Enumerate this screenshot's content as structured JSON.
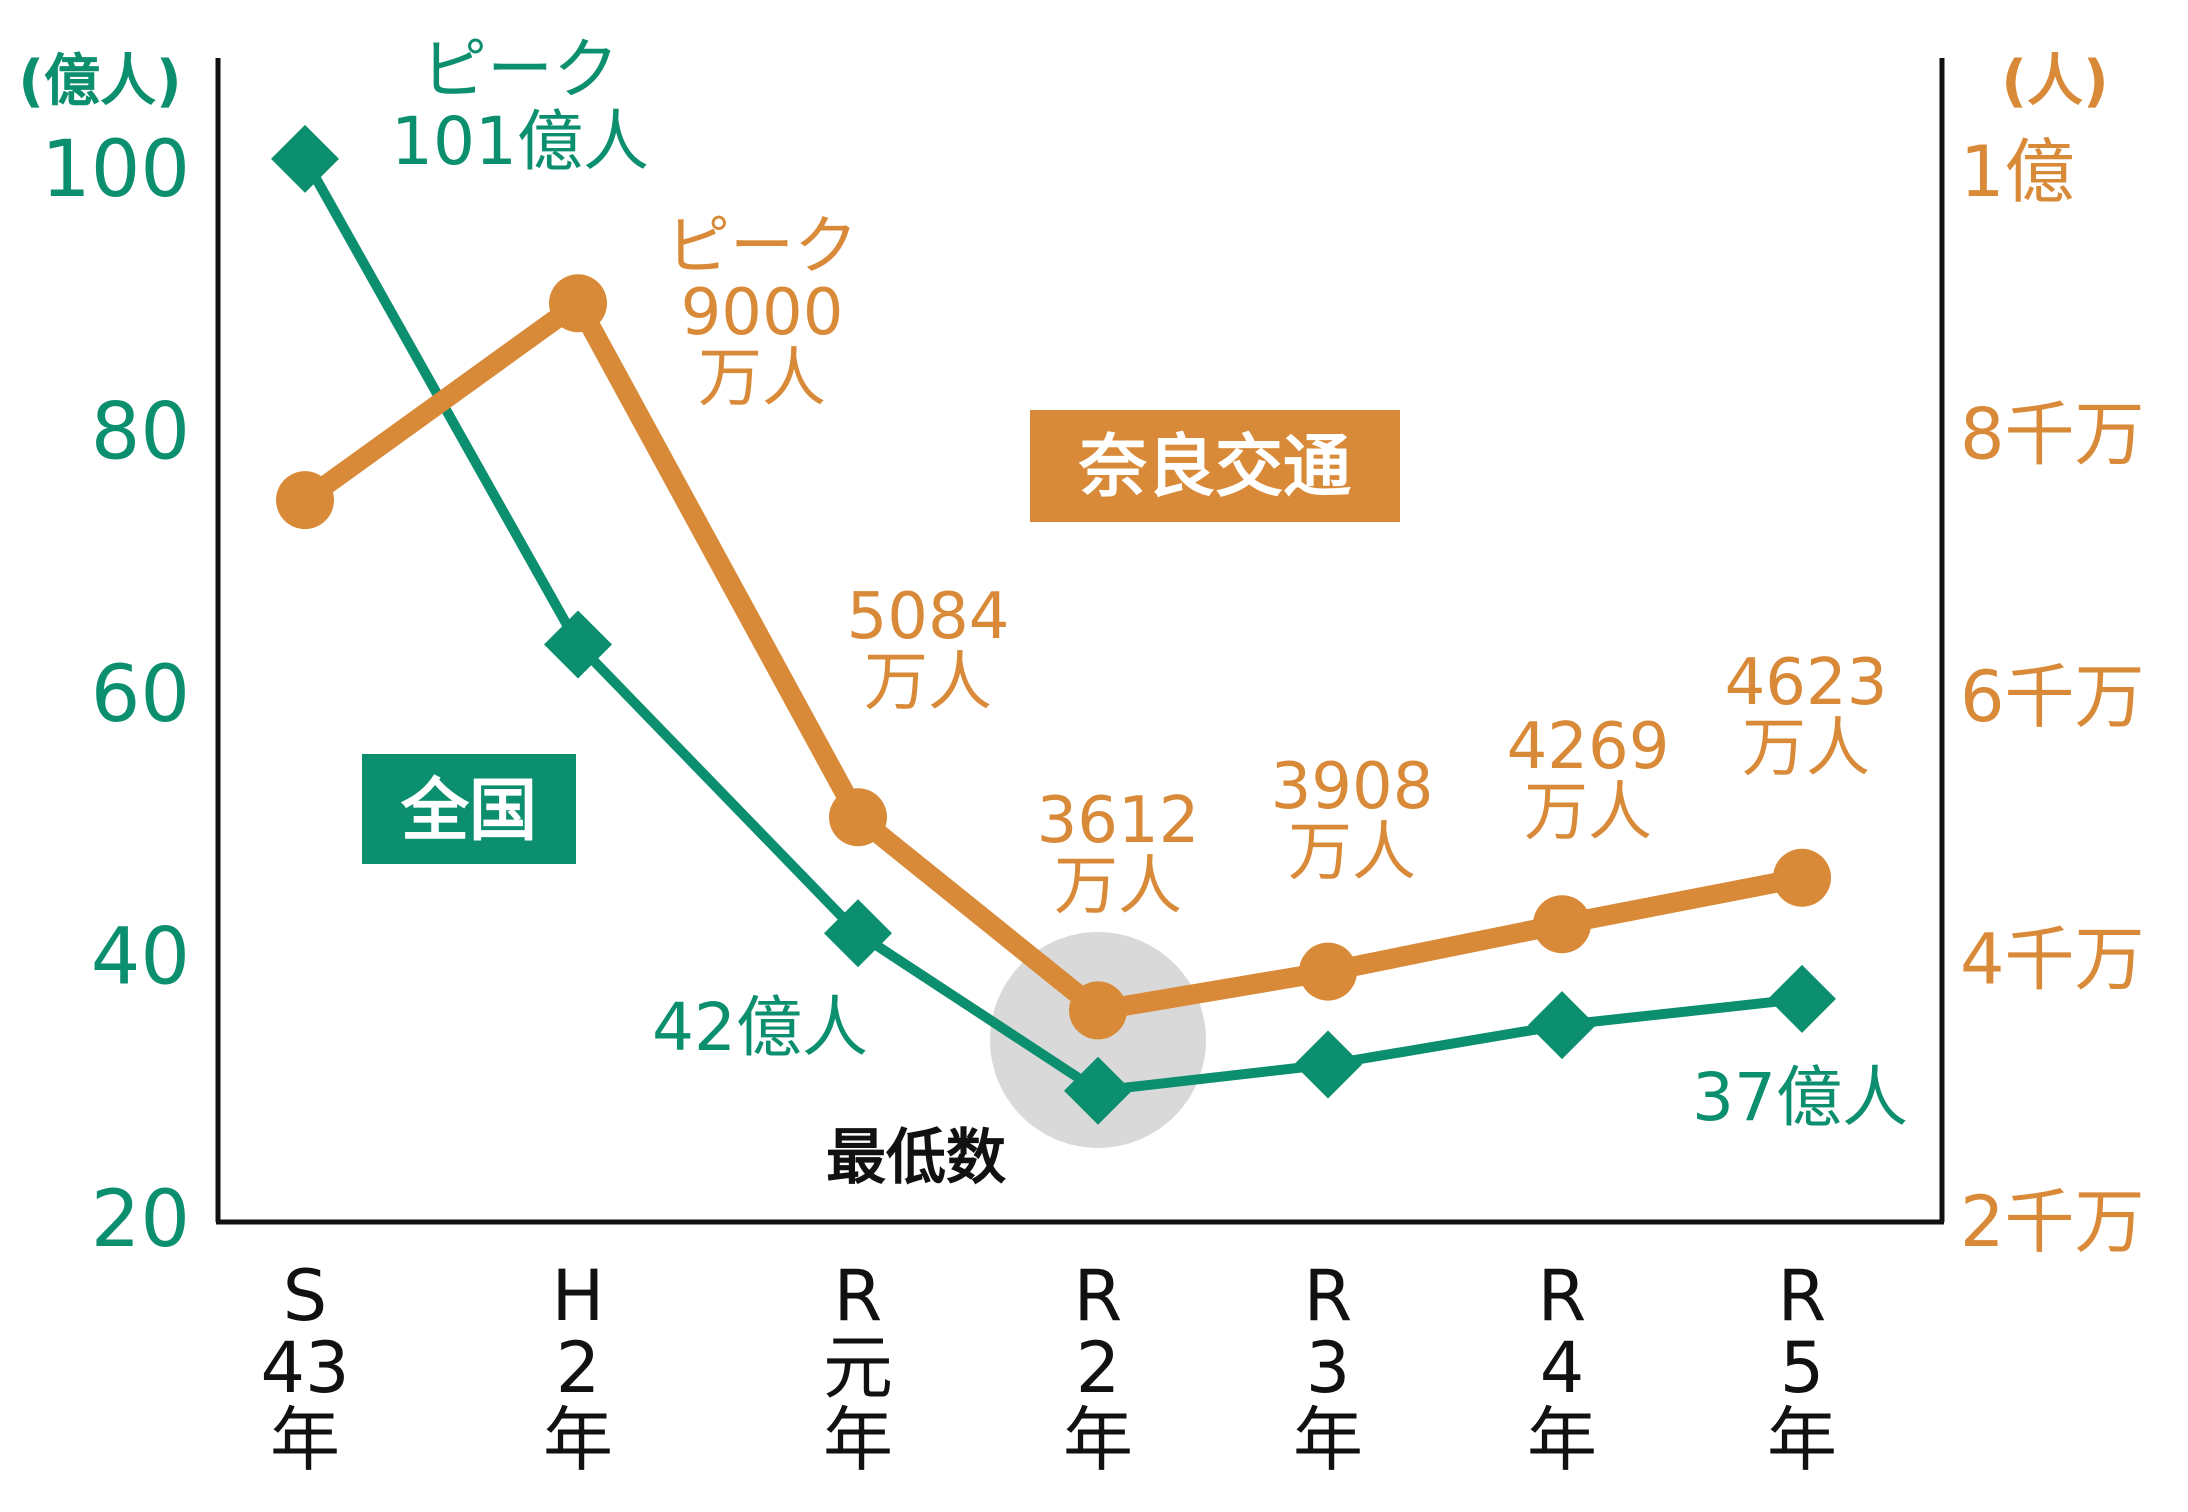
{
  "chart_data": {
    "type": "line",
    "categories": [
      [
        "S",
        "43",
        "年"
      ],
      [
        "H",
        "2",
        "年"
      ],
      [
        "R",
        "元",
        "年"
      ],
      [
        "R",
        "2",
        "年"
      ],
      [
        "R",
        "3",
        "年"
      ],
      [
        "R",
        "4",
        "年"
      ],
      [
        "R",
        "5",
        "年"
      ]
    ],
    "left_axis": {
      "unit": "(億人)",
      "ticks": [
        "100",
        "80",
        "60",
        "40",
        "20"
      ],
      "tick_values": [
        100,
        80,
        60,
        40,
        20
      ],
      "ylim": [
        20,
        100
      ]
    },
    "right_axis": {
      "unit": "(人)",
      "ticks": [
        "1億",
        "8千万",
        "6千万",
        "4千万",
        "2千万"
      ],
      "tick_values": [
        10000,
        8000,
        6000,
        4000,
        2000
      ],
      "ylim": [
        2000,
        10000
      ]
    },
    "series": [
      {
        "name": "全国",
        "axis": "left",
        "color": "#0b8f6e",
        "marker": "diamond",
        "values": [
          101,
          64,
          42,
          30,
          32,
          35,
          37
        ]
      },
      {
        "name": "奈良交通",
        "axis": "right",
        "color": "#d98a38",
        "marker": "circle",
        "values": [
          7500,
          9000,
          5084,
          3612,
          3908,
          4269,
          4623
        ]
      }
    ],
    "data_labels": [
      {
        "series": 0,
        "point": 0,
        "lines": [
          "ピーク",
          "101億人"
        ]
      },
      {
        "series": 0,
        "point": 2,
        "lines": [
          "42億人"
        ]
      },
      {
        "series": 0,
        "point": 6,
        "lines": [
          "37億人"
        ]
      },
      {
        "series": 1,
        "point": 1,
        "lines": [
          "ピーク",
          "9000",
          "万人"
        ]
      },
      {
        "series": 1,
        "point": 2,
        "lines": [
          "5084",
          "万人"
        ]
      },
      {
        "series": 1,
        "point": 3,
        "lines": [
          "3612",
          "万人"
        ]
      },
      {
        "series": 1,
        "point": 4,
        "lines": [
          "3908",
          "万人"
        ]
      },
      {
        "series": 1,
        "point": 5,
        "lines": [
          "4269",
          "万人"
        ]
      },
      {
        "series": 1,
        "point": 6,
        "lines": [
          "4623",
          "万人"
        ]
      }
    ],
    "annotation": "最低数",
    "grid": false
  }
}
